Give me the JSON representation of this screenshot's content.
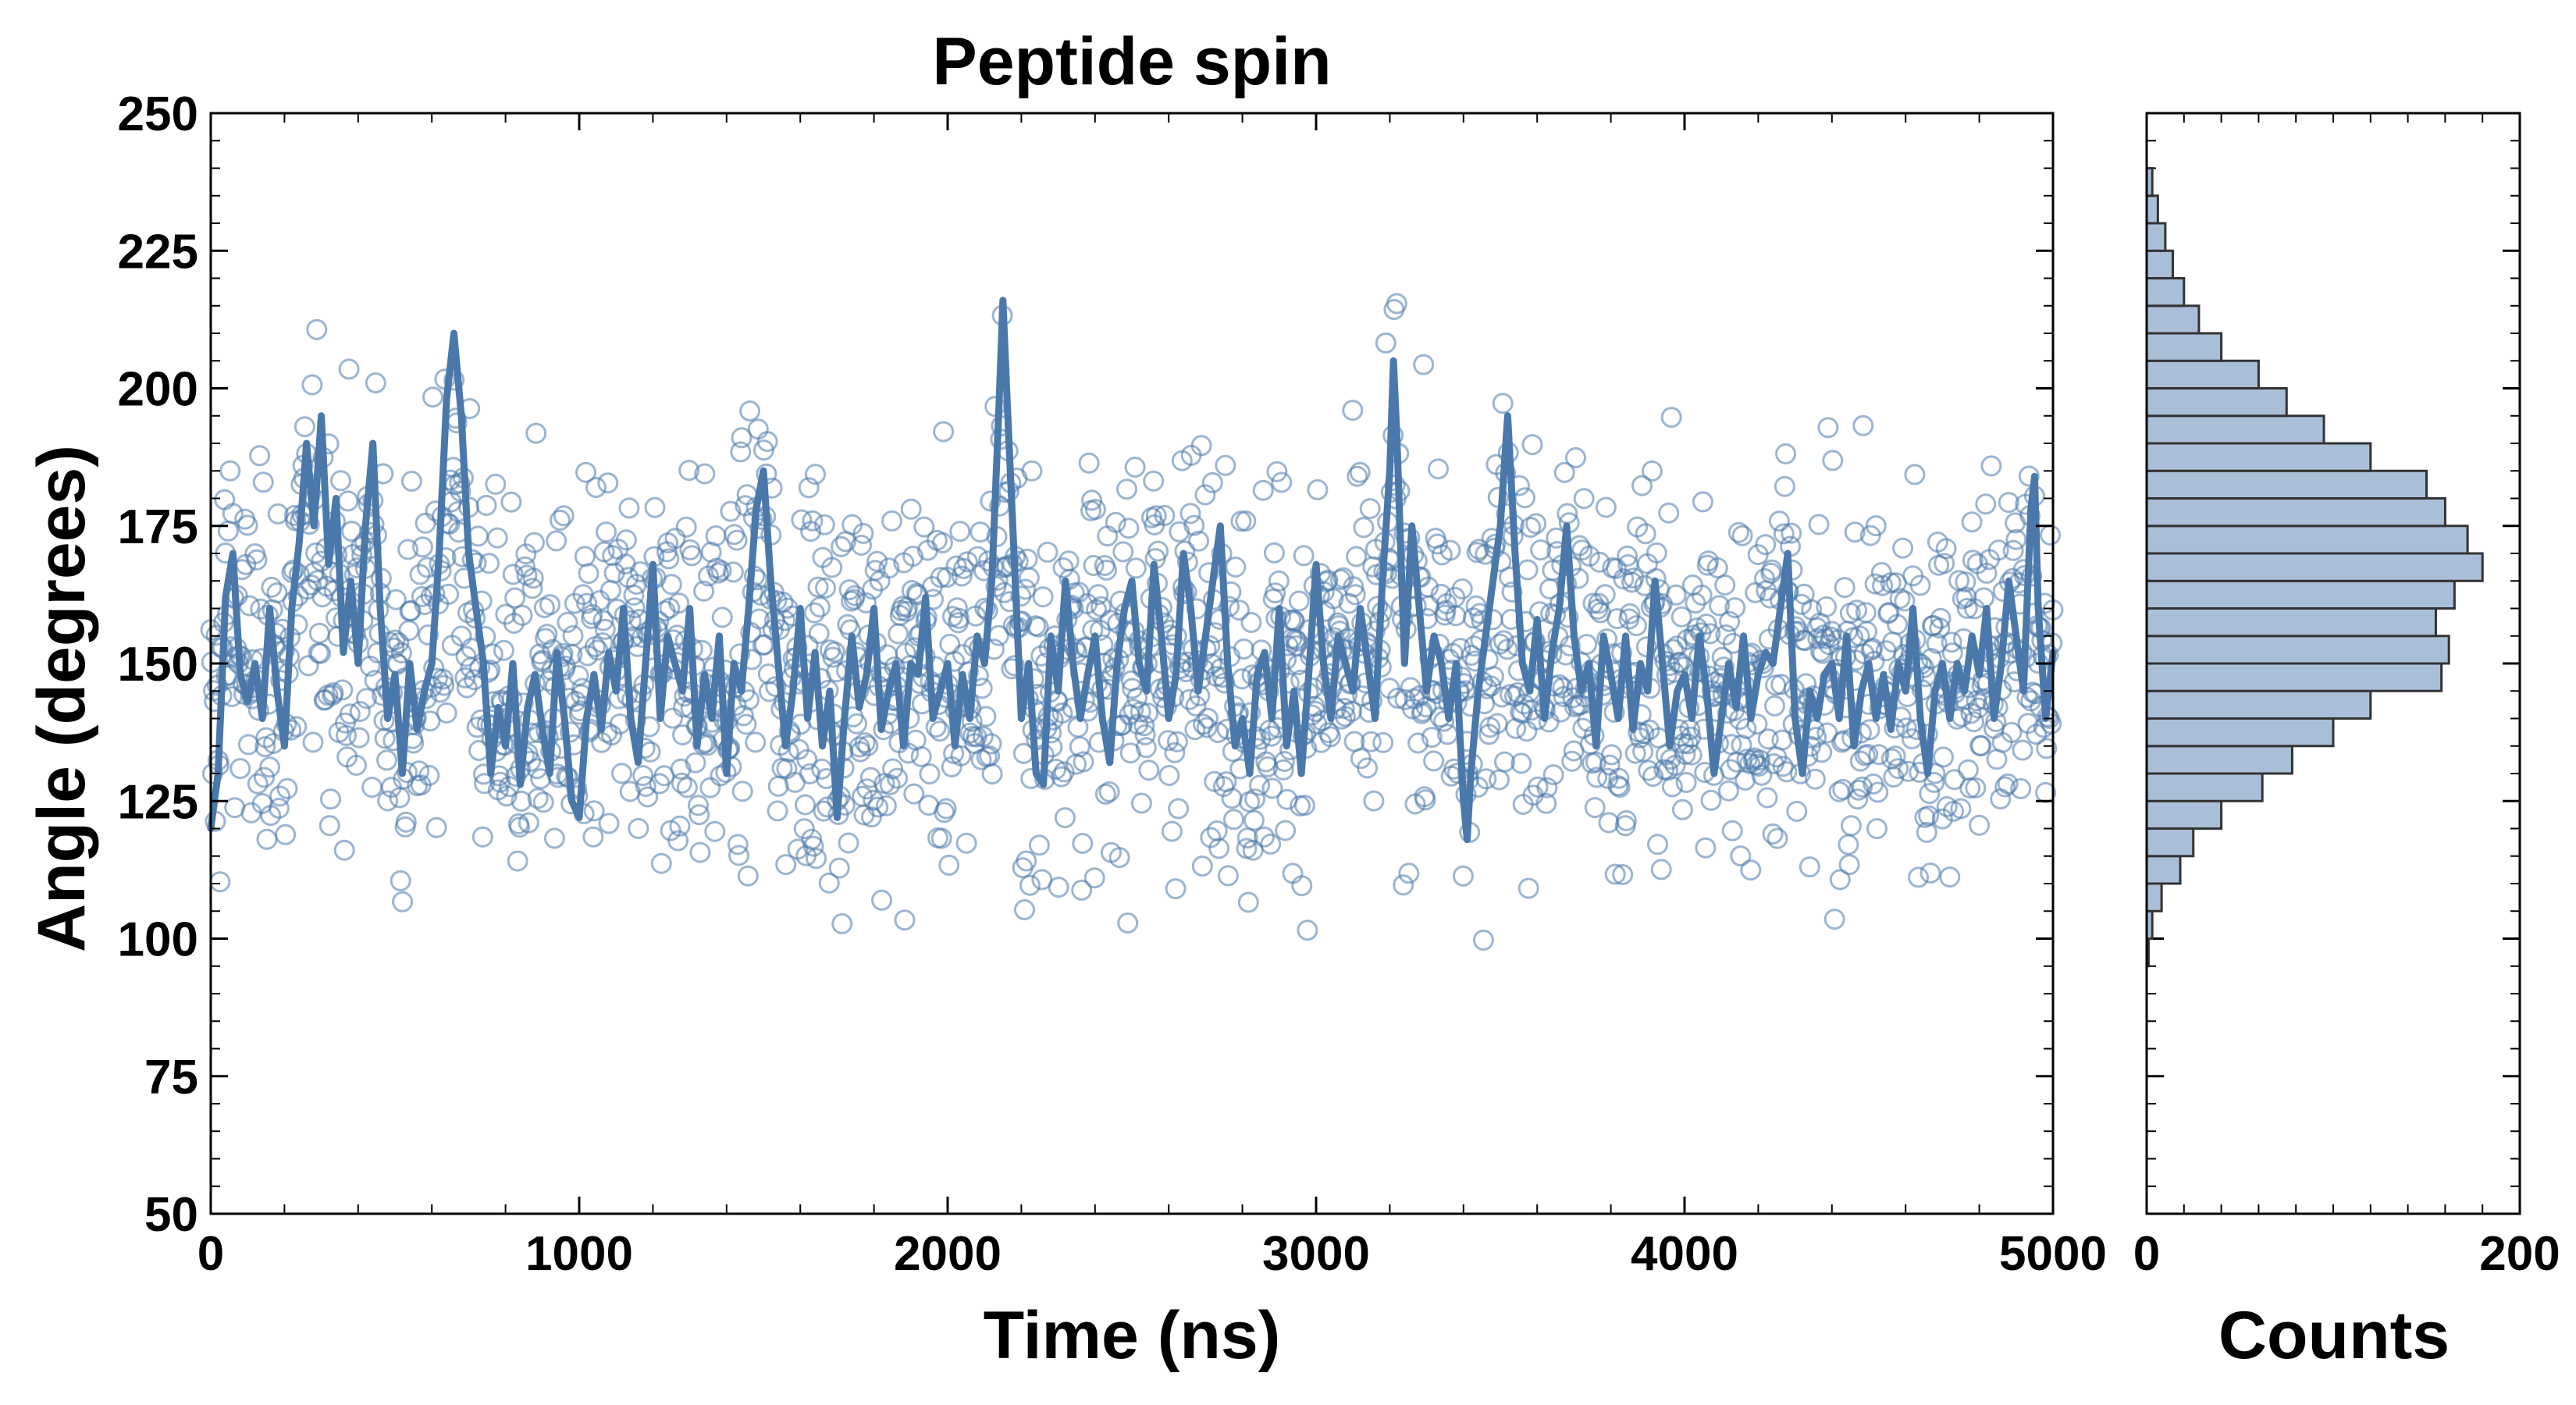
{
  "chart_data": {
    "type": "scatter",
    "title": "Peptide spin",
    "xlabel": "Time (ns)",
    "ylabel": "Angle (degrees)",
    "xlim": [
      0,
      5000
    ],
    "ylim": [
      50,
      250
    ],
    "x_ticks": [
      "0",
      "1000",
      "2000",
      "3000",
      "4000",
      "5000"
    ],
    "y_ticks": [
      "50",
      "75",
      "100",
      "125",
      "150",
      "175",
      "200",
      "225",
      "250"
    ],
    "grid": false,
    "colors": {
      "series": "#4a78aa",
      "hist_fill": "#a9bfd8",
      "hist_edge": "#333333"
    },
    "series": [
      {
        "style": "scatter-open-circles",
        "note_generated": "raw samples, ~2000 points, approx.",
        "sample_count": 2000
      },
      {
        "style": "line-smoothed",
        "points": [
          [
            0,
            120
          ],
          [
            20,
            130
          ],
          [
            40,
            162
          ],
          [
            60,
            170
          ],
          [
            80,
            148
          ],
          [
            100,
            143
          ],
          [
            120,
            150
          ],
          [
            140,
            140
          ],
          [
            160,
            160
          ],
          [
            180,
            145
          ],
          [
            200,
            135
          ],
          [
            220,
            160
          ],
          [
            240,
            172
          ],
          [
            260,
            190
          ],
          [
            280,
            175
          ],
          [
            300,
            195
          ],
          [
            320,
            168
          ],
          [
            340,
            180
          ],
          [
            360,
            152
          ],
          [
            380,
            165
          ],
          [
            400,
            150
          ],
          [
            420,
            175
          ],
          [
            440,
            190
          ],
          [
            460,
            160
          ],
          [
            480,
            140
          ],
          [
            500,
            148
          ],
          [
            520,
            130
          ],
          [
            540,
            150
          ],
          [
            560,
            138
          ],
          [
            580,
            145
          ],
          [
            600,
            150
          ],
          [
            620,
            170
          ],
          [
            640,
            198
          ],
          [
            660,
            210
          ],
          [
            680,
            195
          ],
          [
            700,
            170
          ],
          [
            720,
            160
          ],
          [
            740,
            150
          ],
          [
            760,
            130
          ],
          [
            780,
            142
          ],
          [
            800,
            135
          ],
          [
            820,
            150
          ],
          [
            840,
            128
          ],
          [
            860,
            142
          ],
          [
            880,
            148
          ],
          [
            900,
            138
          ],
          [
            920,
            130
          ],
          [
            940,
            152
          ],
          [
            960,
            140
          ],
          [
            980,
            125
          ],
          [
            1000,
            122
          ],
          [
            1020,
            140
          ],
          [
            1040,
            148
          ],
          [
            1060,
            138
          ],
          [
            1080,
            152
          ],
          [
            1100,
            145
          ],
          [
            1120,
            160
          ],
          [
            1140,
            140
          ],
          [
            1160,
            132
          ],
          [
            1180,
            150
          ],
          [
            1200,
            168
          ],
          [
            1220,
            140
          ],
          [
            1240,
            155
          ],
          [
            1260,
            150
          ],
          [
            1280,
            145
          ],
          [
            1300,
            160
          ],
          [
            1320,
            135
          ],
          [
            1340,
            148
          ],
          [
            1360,
            140
          ],
          [
            1380,
            155
          ],
          [
            1400,
            130
          ],
          [
            1420,
            150
          ],
          [
            1440,
            145
          ],
          [
            1460,
            160
          ],
          [
            1480,
            178
          ],
          [
            1500,
            185
          ],
          [
            1520,
            165
          ],
          [
            1540,
            150
          ],
          [
            1560,
            135
          ],
          [
            1580,
            145
          ],
          [
            1600,
            160
          ],
          [
            1620,
            140
          ],
          [
            1640,
            152
          ],
          [
            1660,
            135
          ],
          [
            1680,
            145
          ],
          [
            1700,
            122
          ],
          [
            1720,
            140
          ],
          [
            1740,
            155
          ],
          [
            1760,
            142
          ],
          [
            1780,
            148
          ],
          [
            1800,
            160
          ],
          [
            1820,
            138
          ],
          [
            1840,
            145
          ],
          [
            1860,
            150
          ],
          [
            1880,
            135
          ],
          [
            1900,
            150
          ],
          [
            1920,
            148
          ],
          [
            1940,
            162
          ],
          [
            1960,
            140
          ],
          [
            1980,
            145
          ],
          [
            2000,
            150
          ],
          [
            2020,
            135
          ],
          [
            2040,
            148
          ],
          [
            2060,
            140
          ],
          [
            2080,
            155
          ],
          [
            2100,
            150
          ],
          [
            2120,
            165
          ],
          [
            2140,
            198
          ],
          [
            2150,
            216
          ],
          [
            2160,
            200
          ],
          [
            2180,
            170
          ],
          [
            2200,
            140
          ],
          [
            2220,
            150
          ],
          [
            2240,
            130
          ],
          [
            2260,
            128
          ],
          [
            2280,
            155
          ],
          [
            2300,
            145
          ],
          [
            2320,
            165
          ],
          [
            2340,
            150
          ],
          [
            2360,
            140
          ],
          [
            2380,
            148
          ],
          [
            2400,
            155
          ],
          [
            2420,
            140
          ],
          [
            2440,
            132
          ],
          [
            2460,
            150
          ],
          [
            2480,
            160
          ],
          [
            2500,
            165
          ],
          [
            2520,
            150
          ],
          [
            2540,
            145
          ],
          [
            2560,
            168
          ],
          [
            2580,
            155
          ],
          [
            2600,
            140
          ],
          [
            2620,
            148
          ],
          [
            2640,
            170
          ],
          [
            2660,
            160
          ],
          [
            2680,
            145
          ],
          [
            2700,
            155
          ],
          [
            2720,
            165
          ],
          [
            2740,
            175
          ],
          [
            2760,
            150
          ],
          [
            2780,
            135
          ],
          [
            2800,
            140
          ],
          [
            2820,
            130
          ],
          [
            2840,
            148
          ],
          [
            2860,
            152
          ],
          [
            2880,
            140
          ],
          [
            2900,
            160
          ],
          [
            2920,
            135
          ],
          [
            2940,
            145
          ],
          [
            2960,
            130
          ],
          [
            2980,
            148
          ],
          [
            3000,
            168
          ],
          [
            3020,
            150
          ],
          [
            3040,
            140
          ],
          [
            3060,
            155
          ],
          [
            3080,
            150
          ],
          [
            3100,
            145
          ],
          [
            3120,
            160
          ],
          [
            3140,
            150
          ],
          [
            3160,
            140
          ],
          [
            3180,
            165
          ],
          [
            3200,
            185
          ],
          [
            3210,
            205
          ],
          [
            3220,
            190
          ],
          [
            3240,
            150
          ],
          [
            3260,
            175
          ],
          [
            3280,
            160
          ],
          [
            3300,
            145
          ],
          [
            3320,
            155
          ],
          [
            3340,
            150
          ],
          [
            3360,
            140
          ],
          [
            3380,
            150
          ],
          [
            3400,
            125
          ],
          [
            3410,
            118
          ],
          [
            3420,
            130
          ],
          [
            3440,
            145
          ],
          [
            3460,
            155
          ],
          [
            3480,
            165
          ],
          [
            3500,
            175
          ],
          [
            3520,
            195
          ],
          [
            3540,
            170
          ],
          [
            3560,
            150
          ],
          [
            3580,
            145
          ],
          [
            3600,
            158
          ],
          [
            3620,
            140
          ],
          [
            3640,
            152
          ],
          [
            3660,
            160
          ],
          [
            3680,
            175
          ],
          [
            3700,
            155
          ],
          [
            3720,
            145
          ],
          [
            3740,
            150
          ],
          [
            3760,
            135
          ],
          [
            3780,
            155
          ],
          [
            3800,
            148
          ],
          [
            3820,
            140
          ],
          [
            3840,
            155
          ],
          [
            3860,
            138
          ],
          [
            3880,
            150
          ],
          [
            3900,
            145
          ],
          [
            3920,
            165
          ],
          [
            3940,
            150
          ],
          [
            3960,
            135
          ],
          [
            3980,
            145
          ],
          [
            4000,
            148
          ],
          [
            4020,
            140
          ],
          [
            4040,
            155
          ],
          [
            4060,
            145
          ],
          [
            4080,
            130
          ],
          [
            4100,
            140
          ],
          [
            4120,
            150
          ],
          [
            4140,
            142
          ],
          [
            4160,
            155
          ],
          [
            4180,
            140
          ],
          [
            4200,
            148
          ],
          [
            4220,
            152
          ],
          [
            4240,
            150
          ],
          [
            4260,
            160
          ],
          [
            4280,
            170
          ],
          [
            4300,
            140
          ],
          [
            4320,
            130
          ],
          [
            4340,
            145
          ],
          [
            4360,
            140
          ],
          [
            4380,
            148
          ],
          [
            4400,
            150
          ],
          [
            4420,
            140
          ],
          [
            4440,
            155
          ],
          [
            4460,
            135
          ],
          [
            4480,
            145
          ],
          [
            4500,
            150
          ],
          [
            4520,
            140
          ],
          [
            4540,
            148
          ],
          [
            4560,
            138
          ],
          [
            4580,
            150
          ],
          [
            4600,
            145
          ],
          [
            4620,
            160
          ],
          [
            4640,
            140
          ],
          [
            4660,
            130
          ],
          [
            4680,
            145
          ],
          [
            4700,
            150
          ],
          [
            4720,
            140
          ],
          [
            4740,
            150
          ],
          [
            4760,
            145
          ],
          [
            4780,
            155
          ],
          [
            4800,
            148
          ],
          [
            4820,
            160
          ],
          [
            4840,
            140
          ],
          [
            4860,
            150
          ],
          [
            4880,
            165
          ],
          [
            4900,
            155
          ],
          [
            4920,
            145
          ],
          [
            4940,
            178
          ],
          [
            4950,
            184
          ],
          [
            4960,
            160
          ],
          [
            4980,
            140
          ],
          [
            5000,
            152
          ]
        ]
      }
    ],
    "histogram": {
      "xlabel": "Counts",
      "xlim": [
        0,
        200
      ],
      "x_ticks": [
        "0",
        "200"
      ],
      "orientation": "horizontal",
      "bin_width": 5,
      "bins": [
        {
          "lo": 95,
          "hi": 100,
          "count": 1
        },
        {
          "lo": 100,
          "hi": 105,
          "count": 3
        },
        {
          "lo": 105,
          "hi": 110,
          "count": 8
        },
        {
          "lo": 110,
          "hi": 115,
          "count": 18
        },
        {
          "lo": 115,
          "hi": 120,
          "count": 25
        },
        {
          "lo": 120,
          "hi": 125,
          "count": 40
        },
        {
          "lo": 125,
          "hi": 130,
          "count": 62
        },
        {
          "lo": 130,
          "hi": 135,
          "count": 78
        },
        {
          "lo": 135,
          "hi": 140,
          "count": 100
        },
        {
          "lo": 140,
          "hi": 145,
          "count": 120
        },
        {
          "lo": 145,
          "hi": 150,
          "count": 158
        },
        {
          "lo": 150,
          "hi": 155,
          "count": 162
        },
        {
          "lo": 155,
          "hi": 160,
          "count": 155
        },
        {
          "lo": 160,
          "hi": 165,
          "count": 165
        },
        {
          "lo": 165,
          "hi": 170,
          "count": 180
        },
        {
          "lo": 170,
          "hi": 175,
          "count": 172
        },
        {
          "lo": 175,
          "hi": 180,
          "count": 160
        },
        {
          "lo": 180,
          "hi": 185,
          "count": 150
        },
        {
          "lo": 185,
          "hi": 190,
          "count": 120
        },
        {
          "lo": 190,
          "hi": 195,
          "count": 95
        },
        {
          "lo": 195,
          "hi": 200,
          "count": 75
        },
        {
          "lo": 200,
          "hi": 205,
          "count": 60
        },
        {
          "lo": 205,
          "hi": 210,
          "count": 40
        },
        {
          "lo": 210,
          "hi": 215,
          "count": 28
        },
        {
          "lo": 215,
          "hi": 220,
          "count": 20
        },
        {
          "lo": 220,
          "hi": 225,
          "count": 14
        },
        {
          "lo": 225,
          "hi": 230,
          "count": 10
        },
        {
          "lo": 230,
          "hi": 235,
          "count": 6
        },
        {
          "lo": 235,
          "hi": 240,
          "count": 3
        }
      ]
    }
  }
}
